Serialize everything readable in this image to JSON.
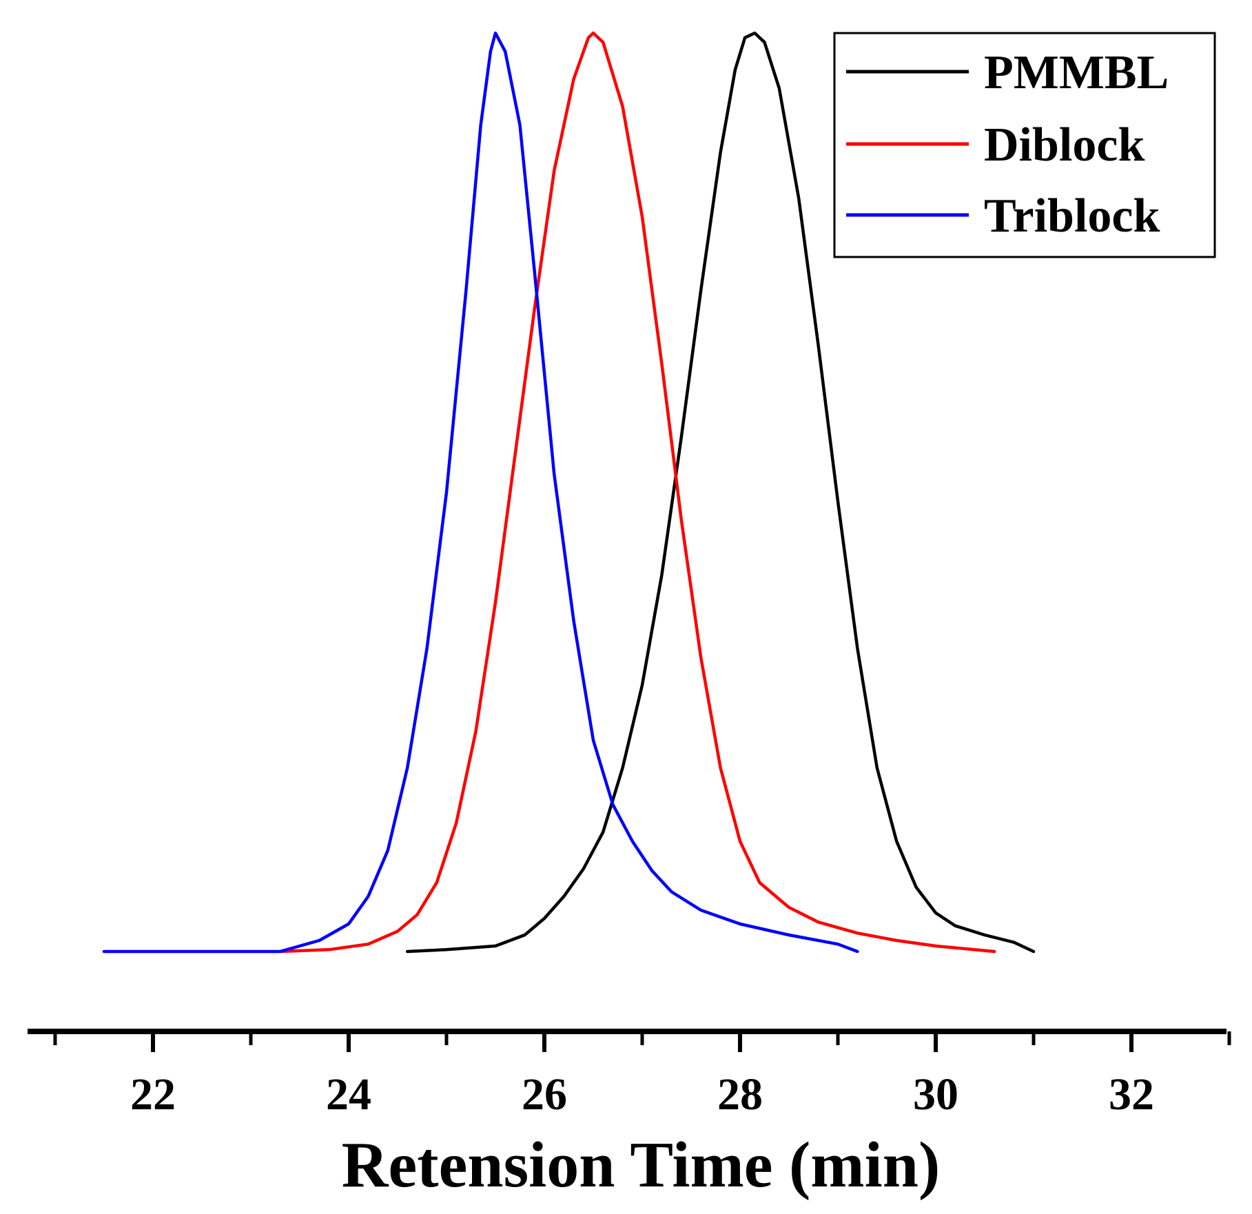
{
  "chart_data": {
    "type": "line",
    "title": "",
    "xlabel": "Retension Time (min)",
    "ylabel": "",
    "xlim": [
      20.5,
      33
    ],
    "xticks_major": [
      22,
      24,
      26,
      28,
      30,
      32
    ],
    "xticks_minor": [
      21,
      23,
      25,
      27,
      29,
      31,
      33
    ],
    "legend_position": "top-right",
    "y_axis_visible": false,
    "series": [
      {
        "name": "PMMBL",
        "color": "#000000",
        "points": [
          [
            24.6,
            0.0
          ],
          [
            25.0,
            0.002
          ],
          [
            25.5,
            0.006
          ],
          [
            25.8,
            0.018
          ],
          [
            26.0,
            0.036
          ],
          [
            26.2,
            0.06
          ],
          [
            26.4,
            0.09
          ],
          [
            26.6,
            0.13
          ],
          [
            26.8,
            0.2
          ],
          [
            27.0,
            0.29
          ],
          [
            27.2,
            0.41
          ],
          [
            27.4,
            0.56
          ],
          [
            27.6,
            0.72
          ],
          [
            27.8,
            0.87
          ],
          [
            27.95,
            0.96
          ],
          [
            28.05,
            0.995
          ],
          [
            28.15,
            1.0
          ],
          [
            28.25,
            0.99
          ],
          [
            28.4,
            0.94
          ],
          [
            28.6,
            0.82
          ],
          [
            28.8,
            0.66
          ],
          [
            29.0,
            0.49
          ],
          [
            29.2,
            0.33
          ],
          [
            29.4,
            0.2
          ],
          [
            29.6,
            0.12
          ],
          [
            29.8,
            0.07
          ],
          [
            30.0,
            0.042
          ],
          [
            30.2,
            0.028
          ],
          [
            30.5,
            0.018
          ],
          [
            30.8,
            0.01
          ],
          [
            31.0,
            0.0
          ]
        ]
      },
      {
        "name": "Diblock",
        "color": "#ff0000",
        "points": [
          [
            23.3,
            0.0
          ],
          [
            23.8,
            0.002
          ],
          [
            24.2,
            0.008
          ],
          [
            24.5,
            0.022
          ],
          [
            24.7,
            0.04
          ],
          [
            24.9,
            0.075
          ],
          [
            25.1,
            0.14
          ],
          [
            25.3,
            0.24
          ],
          [
            25.5,
            0.38
          ],
          [
            25.7,
            0.54
          ],
          [
            25.9,
            0.7
          ],
          [
            26.1,
            0.85
          ],
          [
            26.3,
            0.95
          ],
          [
            26.45,
            0.995
          ],
          [
            26.5,
            1.0
          ],
          [
            26.6,
            0.99
          ],
          [
            26.8,
            0.92
          ],
          [
            27.0,
            0.8
          ],
          [
            27.2,
            0.64
          ],
          [
            27.4,
            0.47
          ],
          [
            27.6,
            0.32
          ],
          [
            27.8,
            0.2
          ],
          [
            28.0,
            0.12
          ],
          [
            28.2,
            0.075
          ],
          [
            28.5,
            0.048
          ],
          [
            28.8,
            0.032
          ],
          [
            29.2,
            0.02
          ],
          [
            29.6,
            0.012
          ],
          [
            30.0,
            0.006
          ],
          [
            30.3,
            0.003
          ],
          [
            30.6,
            0.0
          ]
        ]
      },
      {
        "name": "Triblock",
        "color": "#0000ff",
        "points": [
          [
            21.5,
            0.0
          ],
          [
            22.5,
            0.0
          ],
          [
            23.3,
            0.0
          ],
          [
            23.7,
            0.012
          ],
          [
            24.0,
            0.03
          ],
          [
            24.2,
            0.06
          ],
          [
            24.4,
            0.11
          ],
          [
            24.6,
            0.2
          ],
          [
            24.8,
            0.33
          ],
          [
            25.0,
            0.5
          ],
          [
            25.2,
            0.72
          ],
          [
            25.35,
            0.9
          ],
          [
            25.45,
            0.98
          ],
          [
            25.5,
            1.0
          ],
          [
            25.6,
            0.98
          ],
          [
            25.75,
            0.9
          ],
          [
            25.9,
            0.74
          ],
          [
            26.1,
            0.52
          ],
          [
            26.3,
            0.36
          ],
          [
            26.5,
            0.23
          ],
          [
            26.7,
            0.16
          ],
          [
            26.9,
            0.12
          ],
          [
            27.1,
            0.088
          ],
          [
            27.3,
            0.065
          ],
          [
            27.6,
            0.045
          ],
          [
            28.0,
            0.03
          ],
          [
            28.5,
            0.018
          ],
          [
            29.0,
            0.008
          ],
          [
            29.2,
            0.0
          ]
        ]
      }
    ]
  }
}
